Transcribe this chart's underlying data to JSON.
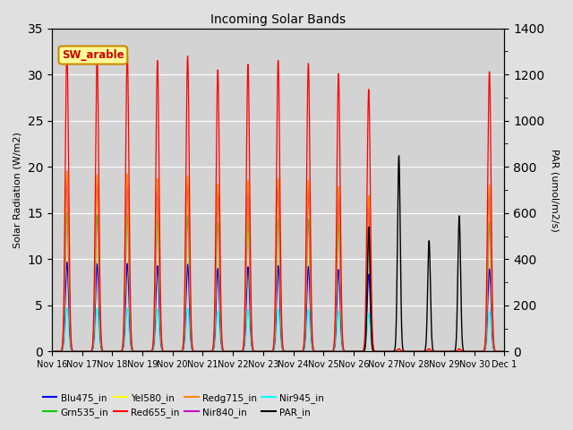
{
  "title": "Incoming Solar Bands",
  "ylabel_left": "Solar Radiation (W/m2)",
  "ylabel_right": "PAR (umol/m2/s)",
  "ylim_left": [
    0,
    35
  ],
  "ylim_right": [
    0,
    1400
  ],
  "annotation_text": "SW_arable",
  "background_color": "#e0e0e0",
  "plot_bg_color": "#d3d3d3",
  "grid_color": "#ffffff",
  "n_days": 15,
  "peak_heights_sw": [
    32.8,
    32.2,
    32.3,
    31.5,
    32.0,
    30.5,
    31.1,
    31.5,
    31.2,
    30.1,
    28.4,
    0.3,
    0.3,
    0.3,
    30.3
  ],
  "par_peak_heights": [
    0,
    0,
    0,
    0,
    0,
    0,
    0,
    0,
    0,
    0,
    13.5,
    21.2,
    12.0,
    14.7,
    0
  ],
  "fractions": {
    "Red655_in": 1.0,
    "Redg715_in": 0.595,
    "Nir840_in": 0.565,
    "Yel580_in": 0.54,
    "Grn535_in": 0.46,
    "Blu475_in": 0.295,
    "Nir945_in": 0.145
  },
  "colors": {
    "Blu475_in": "#0000ff",
    "Grn535_in": "#00cc00",
    "Yel580_in": "#ffff00",
    "Red655_in": "#ff0000",
    "Redg715_in": "#ff8800",
    "Nir840_in": "#cc00cc",
    "Nir945_in": "#00ffff",
    "PAR_in": "#000000"
  },
  "draw_order": [
    "Nir945_in",
    "Blu475_in",
    "Grn535_in",
    "Yel580_in",
    "Nir840_in",
    "Redg715_in",
    "Red655_in"
  ],
  "x_tick_labels": [
    "Nov 16",
    "Nov 17",
    "Nov 18",
    "Nov 19",
    "Nov 20",
    "Nov 21",
    "Nov 22",
    "Nov 23",
    "Nov 24",
    "Nov 25",
    "Nov 26",
    "Nov 27",
    "Nov 28",
    "Nov 29",
    "Nov 30",
    "Dec 1"
  ],
  "legend_order": [
    "Blu475_in",
    "Grn535_in",
    "Yel580_in",
    "Red655_in",
    "Redg715_in",
    "Nir840_in",
    "Nir945_in",
    "PAR_in"
  ]
}
